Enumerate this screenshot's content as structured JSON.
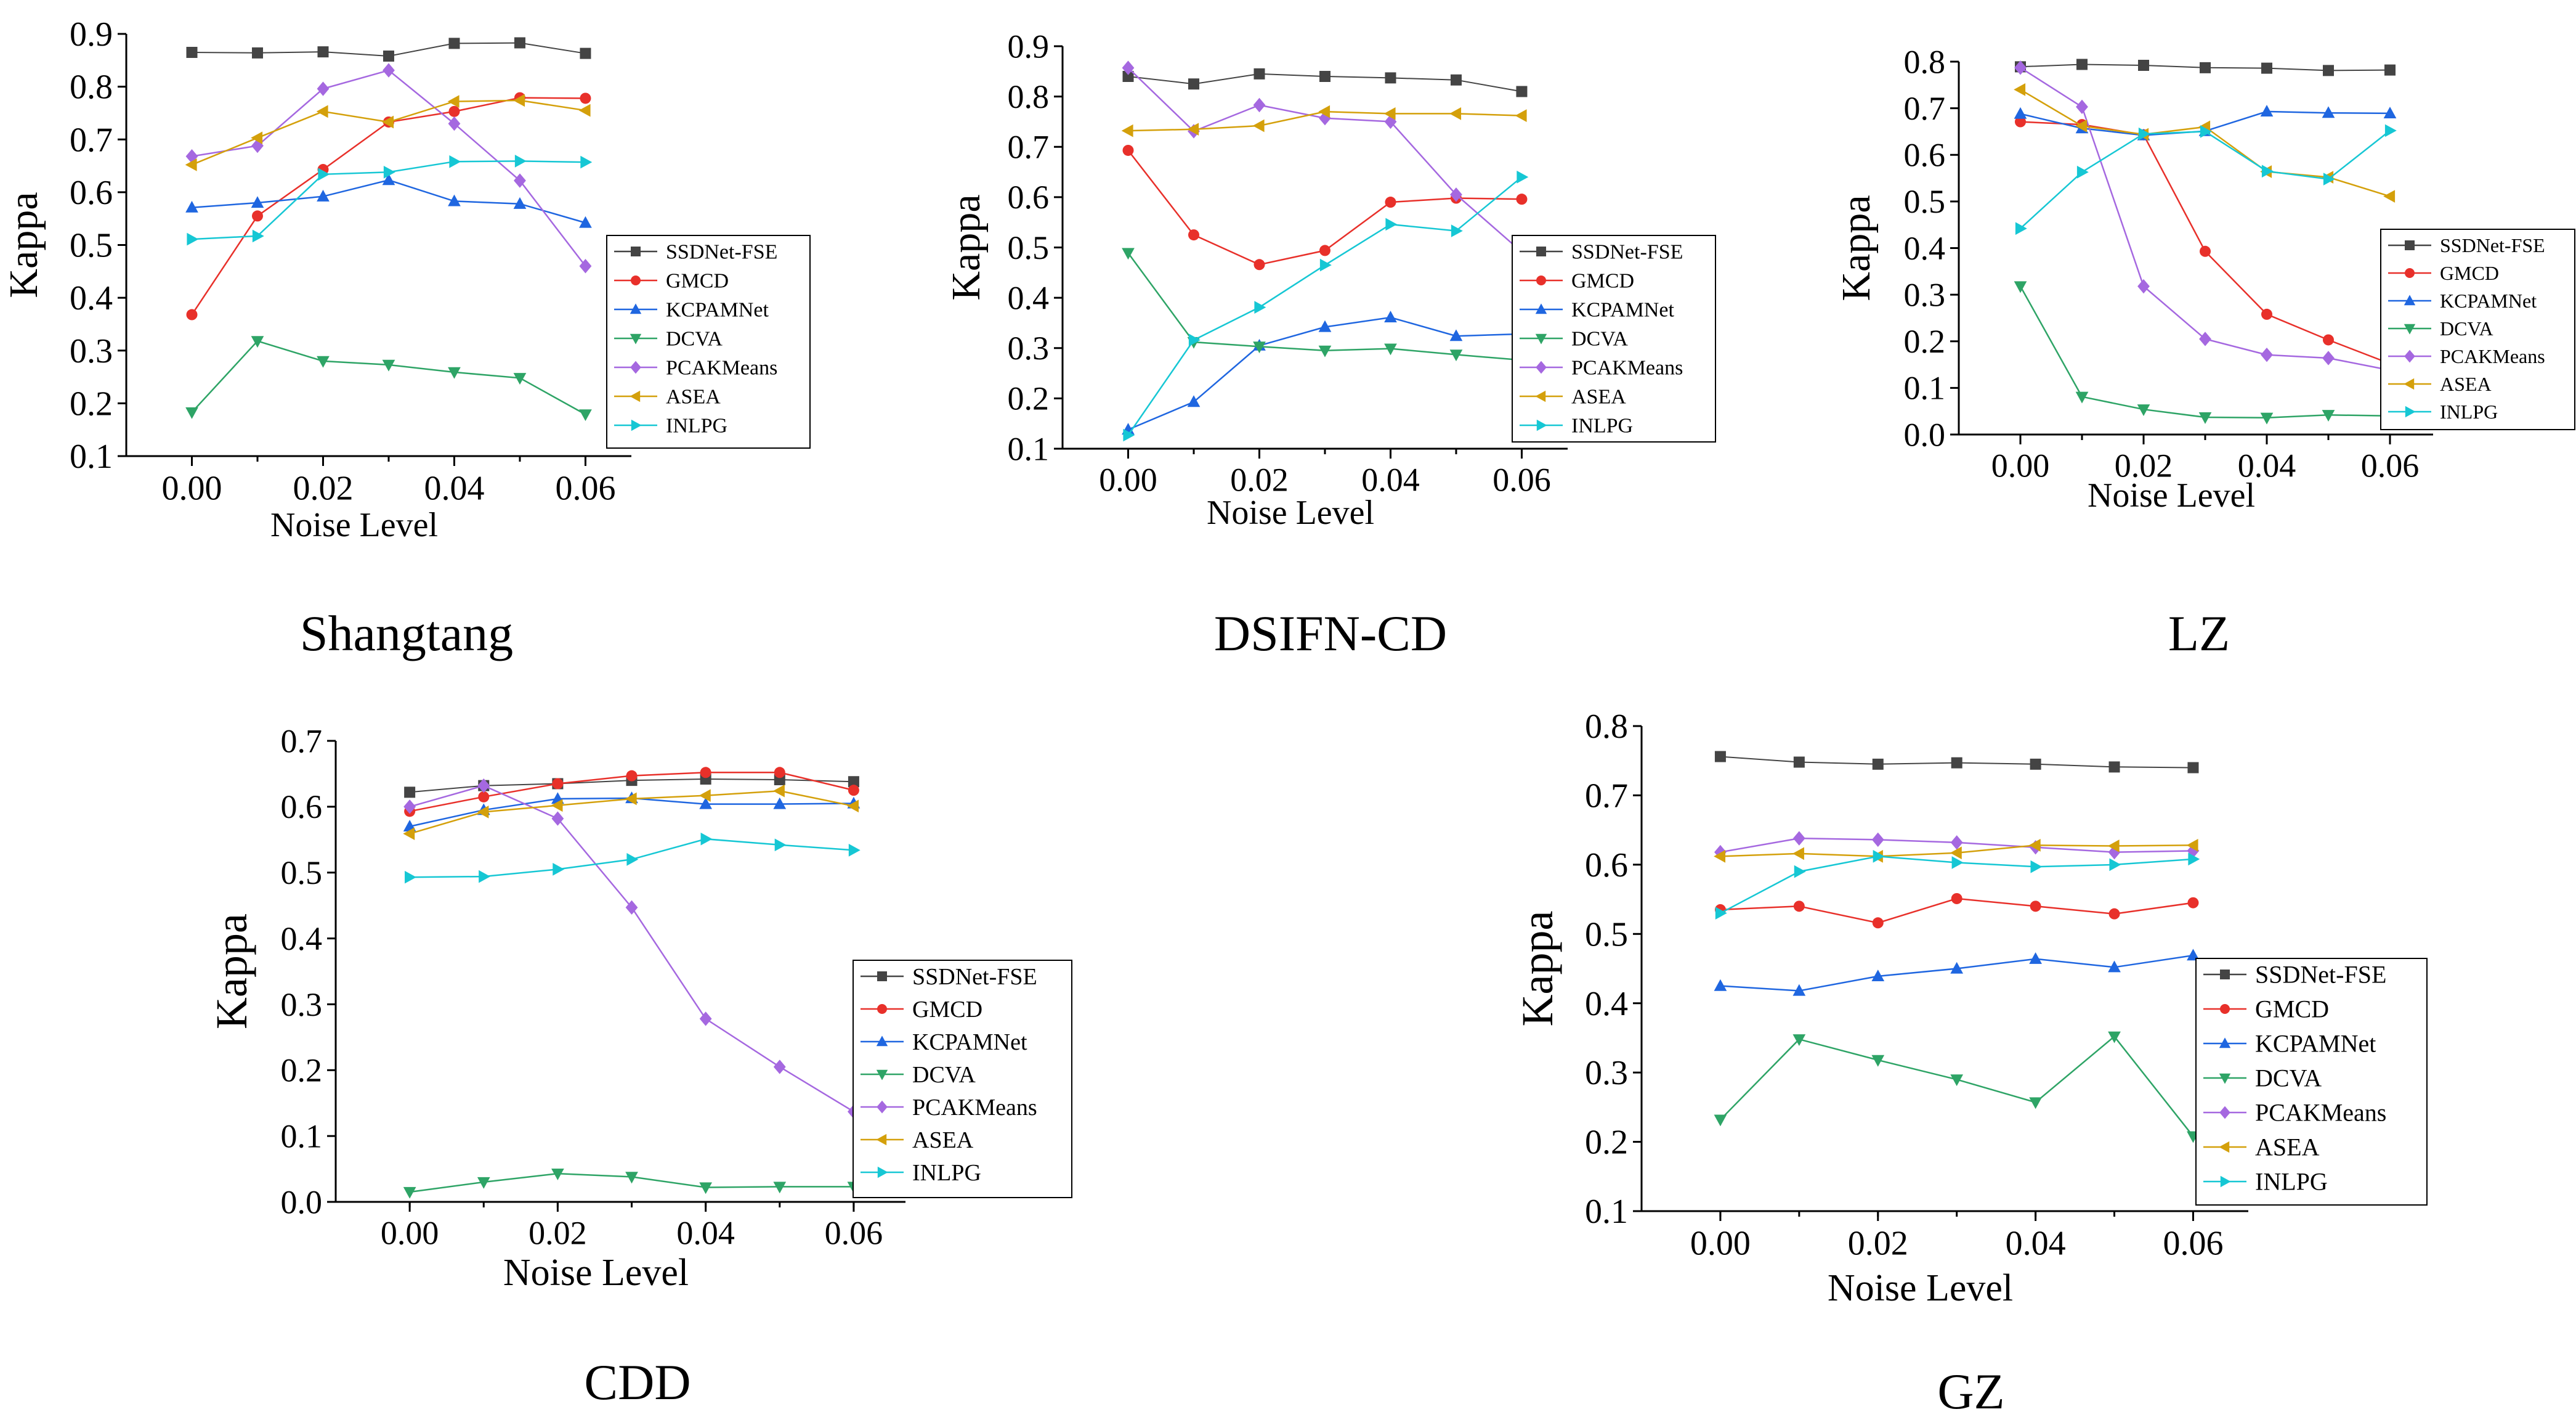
{
  "legend_labels": [
    "SSDNet-FSE",
    "GMCD",
    "KCPAMNet",
    "DCVA",
    "PCAKMeans",
    "ASEA",
    "INLPG"
  ],
  "series_colors": [
    "#444444",
    "#e8302a",
    "#1f66e0",
    "#2ea466",
    "#a568e0",
    "#d4a00b",
    "#16c7d4"
  ],
  "series_markers": [
    "square",
    "circle",
    "triangle-up",
    "triangle-down",
    "diamond",
    "triangle-left",
    "triangle-right"
  ],
  "chart_data": [
    {
      "type": "line",
      "panel_label": "Shangtang",
      "xlabel": "Noise Level",
      "ylabel": "Kappa",
      "x": [
        0.0,
        0.01,
        0.02,
        0.03,
        0.04,
        0.05,
        0.06
      ],
      "x_ticks": [
        "0.00",
        "0.02",
        "0.04",
        "0.06"
      ],
      "y_ticks": [
        "0.1",
        "0.2",
        "0.3",
        "0.4",
        "0.5",
        "0.6",
        "0.7",
        "0.8",
        "0.9"
      ],
      "xlim": [
        -0.01,
        0.067
      ],
      "ylim": [
        0.1,
        0.9
      ],
      "series": [
        {
          "name": "SSDNet-FSE",
          "values": [
            0.865,
            0.864,
            0.866,
            0.858,
            0.882,
            0.883,
            0.863
          ]
        },
        {
          "name": "GMCD",
          "values": [
            0.368,
            0.555,
            0.643,
            0.733,
            0.753,
            0.779,
            0.778
          ]
        },
        {
          "name": "KCPAMNet",
          "values": [
            0.571,
            0.58,
            0.592,
            0.623,
            0.583,
            0.578,
            0.542
          ]
        },
        {
          "name": "DCVA",
          "values": [
            0.183,
            0.318,
            0.28,
            0.273,
            0.259,
            0.248,
            0.179
          ]
        },
        {
          "name": "PCAKMeans",
          "values": [
            0.668,
            0.688,
            0.796,
            0.831,
            0.73,
            0.622,
            0.46
          ]
        },
        {
          "name": "ASEA",
          "values": [
            0.652,
            0.703,
            0.753,
            0.733,
            0.772,
            0.774,
            0.755
          ]
        },
        {
          "name": "INLPG",
          "values": [
            0.511,
            0.517,
            0.634,
            0.638,
            0.658,
            0.659,
            0.657
          ]
        }
      ]
    },
    {
      "type": "line",
      "panel_label": "DSIFN-CD",
      "xlabel": "Noise Level",
      "ylabel": "Kappa",
      "x": [
        0.0,
        0.01,
        0.02,
        0.03,
        0.04,
        0.05,
        0.06
      ],
      "x_ticks": [
        "0.00",
        "0.02",
        "0.04",
        "0.06"
      ],
      "y_ticks": [
        "0.1",
        "0.2",
        "0.3",
        "0.4",
        "0.5",
        "0.6",
        "0.7",
        "0.8",
        "0.9"
      ],
      "xlim": [
        -0.01,
        0.067
      ],
      "ylim": [
        0.1,
        0.9
      ],
      "series": [
        {
          "name": "SSDNet-FSE",
          "values": [
            0.84,
            0.825,
            0.845,
            0.84,
            0.837,
            0.833,
            0.81
          ]
        },
        {
          "name": "GMCD",
          "values": [
            0.693,
            0.525,
            0.466,
            0.494,
            0.59,
            0.598,
            0.596
          ]
        },
        {
          "name": "KCPAMNet",
          "values": [
            0.138,
            0.193,
            0.305,
            0.342,
            0.361,
            0.324,
            0.328
          ]
        },
        {
          "name": "DCVA",
          "values": [
            0.489,
            0.312,
            0.303,
            0.295,
            0.299,
            0.287,
            0.276
          ]
        },
        {
          "name": "PCAKMeans",
          "values": [
            0.857,
            0.731,
            0.783,
            0.757,
            0.75,
            0.605,
            0.491
          ]
        },
        {
          "name": "ASEA",
          "values": [
            0.732,
            0.735,
            0.742,
            0.77,
            0.766,
            0.766,
            0.762
          ]
        },
        {
          "name": "INLPG",
          "values": [
            0.127,
            0.316,
            0.381,
            0.465,
            0.546,
            0.533,
            0.64
          ]
        }
      ]
    },
    {
      "type": "line",
      "panel_label": "LZ",
      "xlabel": "Noise Level",
      "ylabel": "Kappa",
      "x": [
        0.0,
        0.01,
        0.02,
        0.03,
        0.04,
        0.05,
        0.06
      ],
      "x_ticks": [
        "0.00",
        "0.02",
        "0.04",
        "0.06"
      ],
      "y_ticks": [
        "0.0",
        "0.1",
        "0.2",
        "0.3",
        "0.4",
        "0.5",
        "0.6",
        "0.7",
        "0.8"
      ],
      "xlim": [
        -0.01,
        0.067
      ],
      "ylim": [
        0.0,
        0.8
      ],
      "series": [
        {
          "name": "SSDNet-FSE",
          "values": [
            0.789,
            0.794,
            0.792,
            0.787,
            0.786,
            0.781,
            0.782
          ]
        },
        {
          "name": "GMCD",
          "values": [
            0.671,
            0.665,
            0.643,
            0.393,
            0.258,
            0.203,
            0.152
          ]
        },
        {
          "name": "KCPAMNet",
          "values": [
            0.688,
            0.657,
            0.642,
            0.651,
            0.693,
            0.69,
            0.689
          ]
        },
        {
          "name": "DCVA",
          "values": [
            0.318,
            0.081,
            0.054,
            0.037,
            0.036,
            0.042,
            0.04
          ]
        },
        {
          "name": "PCAKMeans",
          "values": [
            0.787,
            0.703,
            0.318,
            0.205,
            0.171,
            0.164,
            0.138
          ]
        },
        {
          "name": "ASEA",
          "values": [
            0.74,
            0.662,
            0.644,
            0.66,
            0.564,
            0.552,
            0.511
          ]
        },
        {
          "name": "INLPG",
          "values": [
            0.442,
            0.563,
            0.645,
            0.65,
            0.565,
            0.548,
            0.652
          ]
        }
      ]
    },
    {
      "type": "line",
      "panel_label": "CDD",
      "xlabel": "Noise Level",
      "ylabel": "Kappa",
      "x": [
        0.0,
        0.01,
        0.02,
        0.03,
        0.04,
        0.05,
        0.06
      ],
      "x_ticks": [
        "0.00",
        "0.02",
        "0.04",
        "0.06"
      ],
      "y_ticks": [
        "0.0",
        "0.1",
        "0.2",
        "0.3",
        "0.4",
        "0.5",
        "0.6",
        "0.7"
      ],
      "xlim": [
        -0.01,
        0.067
      ],
      "ylim": [
        0.0,
        0.7
      ],
      "series": [
        {
          "name": "SSDNet-FSE",
          "values": [
            0.622,
            0.632,
            0.635,
            0.64,
            0.642,
            0.641,
            0.638
          ]
        },
        {
          "name": "GMCD",
          "values": [
            0.593,
            0.615,
            0.635,
            0.647,
            0.652,
            0.652,
            0.625
          ]
        },
        {
          "name": "KCPAMNet",
          "values": [
            0.57,
            0.595,
            0.612,
            0.613,
            0.604,
            0.604,
            0.605
          ]
        },
        {
          "name": "DCVA",
          "values": [
            0.015,
            0.03,
            0.043,
            0.038,
            0.022,
            0.023,
            0.023
          ]
        },
        {
          "name": "PCAKMeans",
          "values": [
            0.6,
            0.632,
            0.582,
            0.447,
            0.278,
            0.205,
            0.137
          ]
        },
        {
          "name": "ASEA",
          "values": [
            0.559,
            0.592,
            0.602,
            0.612,
            0.617,
            0.624,
            0.601
          ]
        },
        {
          "name": "INLPG",
          "values": [
            0.493,
            0.494,
            0.505,
            0.52,
            0.551,
            0.542,
            0.534
          ]
        }
      ]
    },
    {
      "type": "line",
      "panel_label": "GZ",
      "xlabel": "Noise Level",
      "ylabel": "Kappa",
      "x": [
        0.0,
        0.01,
        0.02,
        0.03,
        0.04,
        0.05,
        0.06
      ],
      "x_ticks": [
        "0.00",
        "0.02",
        "0.04",
        "0.06"
      ],
      "y_ticks": [
        "0.1",
        "0.2",
        "0.3",
        "0.4",
        "0.5",
        "0.6",
        "0.7",
        "0.8"
      ],
      "xlim": [
        -0.01,
        0.067
      ],
      "ylim": [
        0.1,
        0.8
      ],
      "series": [
        {
          "name": "SSDNet-FSE",
          "values": [
            0.756,
            0.748,
            0.745,
            0.747,
            0.745,
            0.741,
            0.74
          ]
        },
        {
          "name": "GMCD",
          "values": [
            0.535,
            0.54,
            0.516,
            0.551,
            0.54,
            0.529,
            0.545
          ]
        },
        {
          "name": "KCPAMNet",
          "values": [
            0.425,
            0.418,
            0.439,
            0.45,
            0.464,
            0.452,
            0.469
          ]
        },
        {
          "name": "DCVA",
          "values": [
            0.232,
            0.348,
            0.318,
            0.29,
            0.257,
            0.352,
            0.208
          ]
        },
        {
          "name": "PCAKMeans",
          "values": [
            0.618,
            0.638,
            0.636,
            0.632,
            0.625,
            0.618,
            0.62
          ]
        },
        {
          "name": "ASEA",
          "values": [
            0.612,
            0.616,
            0.612,
            0.617,
            0.628,
            0.627,
            0.628
          ]
        },
        {
          "name": "INLPG",
          "values": [
            0.53,
            0.59,
            0.612,
            0.603,
            0.597,
            0.6,
            0.608
          ]
        }
      ]
    }
  ]
}
